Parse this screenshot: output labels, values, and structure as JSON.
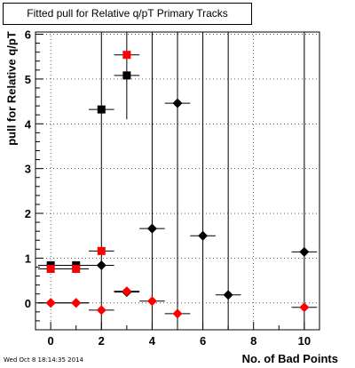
{
  "chart_data": {
    "type": "scatter",
    "title": "Fitted pull for Relative q/pT Primary Tracks",
    "xlabel": "No. of Bad Points",
    "ylabel": "pull for Relative q/pT",
    "xlim": [
      -0.6,
      10.6
    ],
    "ylim": [
      -0.6,
      6.05
    ],
    "xticks": [
      "0",
      "2",
      "4",
      "6",
      "8",
      "10"
    ],
    "yticks": [
      "0",
      "1",
      "2",
      "3",
      "4",
      "5",
      "6"
    ],
    "grid": true,
    "series": [
      {
        "marker": "square",
        "color": "#000000",
        "points": [
          {
            "x": 0,
            "y": 0.84,
            "xerr": 0.5
          },
          {
            "x": 1,
            "y": 0.84,
            "xerr": 0.5
          },
          {
            "x": 2,
            "y": 4.32,
            "xerr": 0.5
          },
          {
            "x": 3,
            "y": 5.08,
            "xerr": 0.5,
            "yerr": 0.98
          }
        ]
      },
      {
        "marker": "square",
        "color": "#ff0000",
        "points": [
          {
            "x": 0,
            "y": 0.76,
            "xerr": 0.5
          },
          {
            "x": 1,
            "y": 0.76,
            "xerr": 0.5
          },
          {
            "x": 2,
            "y": 1.16,
            "xerr": 0.5
          },
          {
            "x": 3,
            "y": 5.54,
            "xerr": 0.5
          }
        ]
      },
      {
        "marker": "diamond",
        "color": "#000000",
        "points": [
          {
            "x": 0,
            "y": 0.0,
            "xerr": 0.5
          },
          {
            "x": 1,
            "y": 0.0,
            "xerr": 0.5
          },
          {
            "x": 2,
            "y": 0.84,
            "xerr": 0.5,
            "yerr": 6.0
          },
          {
            "x": 3,
            "y": 0.24,
            "xerr": 0.5
          },
          {
            "x": 4,
            "y": 1.66,
            "xerr": 0.5,
            "yerr": 6.0
          },
          {
            "x": 5,
            "y": 4.46,
            "xerr": 0.5,
            "yerr": 6.0
          },
          {
            "x": 6,
            "y": 1.5,
            "xerr": 0.5,
            "yerr": 6.0
          },
          {
            "x": 7,
            "y": 0.18,
            "xerr": 0.5,
            "yerr": 6.0
          },
          {
            "x": 10,
            "y": 1.14,
            "xerr": 0.5,
            "yerr": 6.0
          }
        ]
      },
      {
        "marker": "diamond",
        "color": "#ff0000",
        "points": [
          {
            "x": 0,
            "y": 0.0,
            "xerr": 0.5
          },
          {
            "x": 1,
            "y": 0.0,
            "xerr": 0.5
          },
          {
            "x": 2,
            "y": -0.16,
            "xerr": 0.5
          },
          {
            "x": 3,
            "y": 0.26,
            "xerr": 0.5
          },
          {
            "x": 4,
            "y": 0.04,
            "xerr": 0.5
          },
          {
            "x": 5,
            "y": -0.24,
            "xerr": 0.5
          },
          {
            "x": 10,
            "y": -0.1,
            "xerr": 0.5
          }
        ]
      }
    ]
  },
  "footer": {
    "datestamp": "Wed Oct  8 18:14:35 2014"
  }
}
